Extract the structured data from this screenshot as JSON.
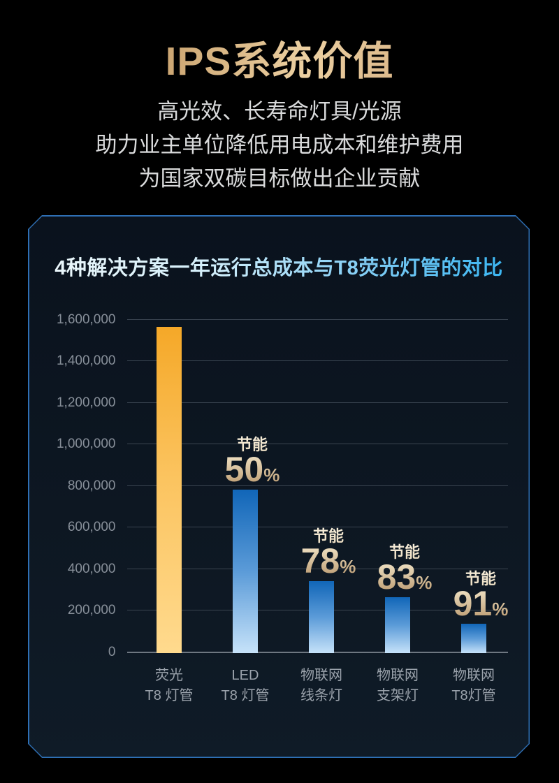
{
  "header": {
    "title": "IPS系统价值",
    "subtitle_lines": [
      "高光效、长寿命灯具/光源",
      "助力业主单位降低用电成本和维护费用",
      "为国家双碳目标做出企业贡献"
    ]
  },
  "chart_data": {
    "type": "bar",
    "title": "4种解决方案一年运行总成本与T8荧光灯管的对比",
    "ylim": [
      0,
      1600000
    ],
    "y_tick_labels_top_to_bottom": [
      "1,600,000",
      "1,400,000",
      "1,200,000",
      "1,000,000",
      "800,000",
      "600,000",
      "400,000",
      "200,000",
      "0"
    ],
    "grid": true,
    "legend": false,
    "saving_label_word": "节能",
    "percent_symbol": "%",
    "bars": [
      {
        "category_line1": "荧光",
        "category_line2": "T8 灯管",
        "value": 1560000,
        "saving_pct": null,
        "color": "gold"
      },
      {
        "category_line1": "LED",
        "category_line2": "T8 灯管",
        "value": 780000,
        "saving_pct": "50",
        "color": "blue"
      },
      {
        "category_line1": "物联网",
        "category_line2": "线条灯",
        "value": 343000,
        "saving_pct": "78",
        "color": "blue"
      },
      {
        "category_line1": "物联网",
        "category_line2": "支架灯",
        "value": 265000,
        "saving_pct": "83",
        "color": "blue"
      },
      {
        "category_line1": "物联网",
        "category_line2": "T8灯管",
        "value": 140000,
        "saving_pct": "91",
        "color": "blue"
      }
    ]
  },
  "colors": {
    "page_background": "#000000",
    "panel_background": "#0d1722",
    "panel_border": "#2e6fb4",
    "gold_bar_top": "#f5a828",
    "gold_bar_bottom": "#ffda8e",
    "blue_bar_top": "#1166b8",
    "blue_bar_bottom": "#c6e2f9",
    "saving_text_light": "#f6edda",
    "saving_text_dark": "#bb9a70",
    "title_gold_light": "#ecd0a2",
    "title_gold_dark": "#8f6f47",
    "chart_title_left": "#eef8fb",
    "chart_title_right": "#2eb2f2",
    "gridline": "#3a4450",
    "axis_line": "#6e7781",
    "y_tick_text": "#878f99",
    "x_tick_text": "#9aa2ab",
    "subtitle_text": "#d9dadb"
  }
}
